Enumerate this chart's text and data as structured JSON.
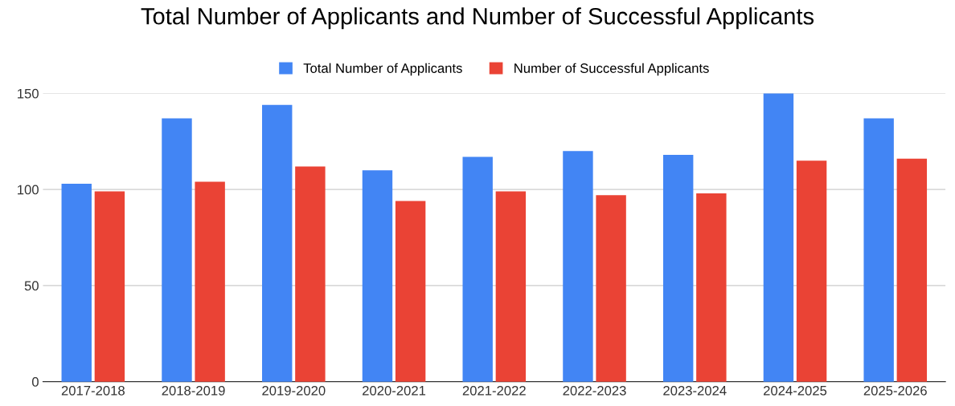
{
  "chart_data": {
    "type": "bar",
    "title": "Total Number of Applicants and Number of Successful Applicants",
    "categories": [
      "2017-2018",
      "2018-2019",
      "2019-2020",
      "2020-2021",
      "2021-2022",
      "2022-2023",
      "2023-2024",
      "2024-2025",
      "2025-2026"
    ],
    "series": [
      {
        "name": "Total Number of Applicants",
        "color": "#4285f4",
        "values": [
          103,
          137,
          144,
          110,
          117,
          120,
          118,
          150,
          137
        ]
      },
      {
        "name": "Number of Successful Applicants",
        "color": "#ea4335",
        "values": [
          99,
          104,
          112,
          94,
          99,
          97,
          98,
          115,
          116
        ]
      }
    ],
    "ylim": [
      0,
      150
    ],
    "yticks": [
      0,
      50,
      100,
      150
    ],
    "grid": "y",
    "legend": "top"
  }
}
